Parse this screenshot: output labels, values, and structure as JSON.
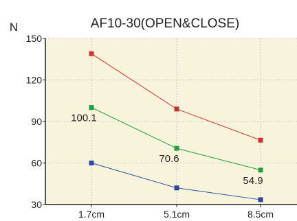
{
  "chart_data": {
    "type": "line",
    "title": "AF10-30(OPEN&CLOSE)",
    "ylabel": "N",
    "xlabel": "",
    "categories": [
      "1.7cm",
      "5.1cm",
      "8.5cm"
    ],
    "ylim": [
      30,
      150
    ],
    "yticks": [
      30,
      60,
      90,
      120,
      150
    ],
    "grid": true,
    "legend": "none",
    "background_color": "#f8f4dc",
    "grid_color": "#c8c8c8",
    "series": [
      {
        "color": "#d03030",
        "values": [
          139,
          99,
          76.5
        ]
      },
      {
        "color": "#22a040",
        "values": [
          100.1,
          70.6,
          54.9
        ]
      },
      {
        "color": "#2a4aa0",
        "values": [
          60,
          42,
          33.5
        ]
      }
    ],
    "annotations": [
      {
        "series": 1,
        "index": 0,
        "text": "100.1"
      },
      {
        "series": 1,
        "index": 1,
        "text": "70.6"
      },
      {
        "series": 1,
        "index": 2,
        "text": "54.9"
      }
    ]
  }
}
